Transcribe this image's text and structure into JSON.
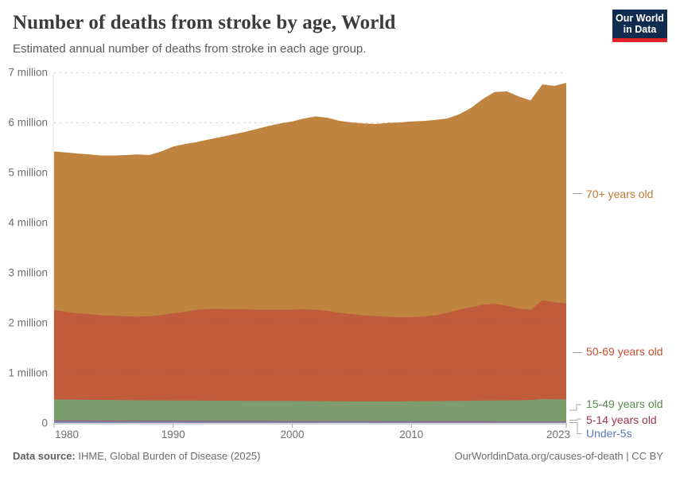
{
  "header": {
    "title": "Number of deaths from stroke by age, World",
    "subtitle": "Estimated annual number of deaths from stroke in each age group."
  },
  "logo": {
    "line1": "Our World",
    "line2": "in Data",
    "bg_color": "#102d50",
    "accent_color": "#e0232b"
  },
  "footer": {
    "source_label": "Data source:",
    "source_value": " IHME, Global Burden of Disease (2025)",
    "credit": "OurWorldinData.org/causes-of-death | CC BY"
  },
  "chart_data": {
    "type": "area",
    "stacked": true,
    "title": "Number of deaths from stroke by age, World",
    "unit": "deaths per year (millions)",
    "xlabel": "",
    "ylabel": "",
    "ylim": [
      0,
      7
    ],
    "grid": "horizontal dashed",
    "legend_position": "right",
    "x_years": [
      1980,
      1981,
      1982,
      1983,
      1984,
      1985,
      1986,
      1987,
      1988,
      1989,
      1990,
      1991,
      1992,
      1993,
      1994,
      1995,
      1996,
      1997,
      1998,
      1999,
      2000,
      2001,
      2002,
      2003,
      2004,
      2005,
      2006,
      2007,
      2008,
      2009,
      2010,
      2011,
      2012,
      2013,
      2014,
      2015,
      2016,
      2017,
      2018,
      2019,
      2020,
      2021,
      2022,
      2023
    ],
    "yticks": [
      {
        "value": 0,
        "label": "0"
      },
      {
        "value": 1,
        "label": "1 million"
      },
      {
        "value": 2,
        "label": "2 million"
      },
      {
        "value": 3,
        "label": "3 million"
      },
      {
        "value": 4,
        "label": "4 million"
      },
      {
        "value": 5,
        "label": "5 million"
      },
      {
        "value": 6,
        "label": "6 million"
      },
      {
        "value": 7,
        "label": "7 million"
      }
    ],
    "xticks": [
      {
        "year": 1980,
        "label": "1980"
      },
      {
        "year": 1990,
        "label": "1990"
      },
      {
        "year": 2000,
        "label": "2000"
      },
      {
        "year": 2010,
        "label": "2010"
      },
      {
        "year": 2023,
        "label": "2023"
      }
    ],
    "series": [
      {
        "id": "under-5s",
        "label": "Under-5s",
        "color": "#8089bd",
        "label_color": "#5879b9",
        "values": [
          0.034,
          0.034,
          0.033,
          0.033,
          0.032,
          0.032,
          0.031,
          0.031,
          0.03,
          0.03,
          0.03,
          0.029,
          0.029,
          0.028,
          0.028,
          0.028,
          0.027,
          0.027,
          0.027,
          0.026,
          0.026,
          0.026,
          0.026,
          0.025,
          0.025,
          0.025,
          0.025,
          0.024,
          0.024,
          0.024,
          0.024,
          0.024,
          0.023,
          0.023,
          0.023,
          0.023,
          0.023,
          0.022,
          0.022,
          0.022,
          0.022,
          0.022,
          0.022,
          0.022
        ]
      },
      {
        "id": "5-14",
        "label": "5-14 years old",
        "color": "#99506b",
        "label_color": "#a2344b",
        "values": [
          0.016,
          0.016,
          0.016,
          0.016,
          0.016,
          0.015,
          0.015,
          0.015,
          0.015,
          0.015,
          0.014,
          0.014,
          0.014,
          0.014,
          0.014,
          0.014,
          0.014,
          0.014,
          0.014,
          0.014,
          0.013,
          0.013,
          0.013,
          0.013,
          0.013,
          0.013,
          0.013,
          0.013,
          0.013,
          0.013,
          0.013,
          0.013,
          0.013,
          0.013,
          0.012,
          0.012,
          0.012,
          0.012,
          0.012,
          0.012,
          0.012,
          0.012,
          0.012,
          0.012
        ]
      },
      {
        "id": "15-49",
        "label": "15-49 years old",
        "color": "#7d9c6e",
        "label_color": "#578a4c",
        "values": [
          0.42,
          0.418,
          0.416,
          0.414,
          0.412,
          0.41,
          0.408,
          0.407,
          0.406,
          0.405,
          0.405,
          0.404,
          0.404,
          0.403,
          0.402,
          0.402,
          0.401,
          0.401,
          0.4,
          0.4,
          0.4,
          0.399,
          0.398,
          0.397,
          0.397,
          0.396,
          0.396,
          0.396,
          0.397,
          0.397,
          0.398,
          0.399,
          0.401,
          0.403,
          0.406,
          0.409,
          0.412,
          0.415,
          0.417,
          0.419,
          0.421,
          0.445,
          0.44,
          0.436
        ]
      },
      {
        "id": "50-69",
        "label": "50-69 years old",
        "color": "#c05b3b",
        "label_color": "#c4502e",
        "values": [
          1.78,
          1.752,
          1.725,
          1.707,
          1.69,
          1.683,
          1.676,
          1.671,
          1.679,
          1.706,
          1.741,
          1.773,
          1.813,
          1.833,
          1.836,
          1.826,
          1.828,
          1.818,
          1.82,
          1.82,
          1.821,
          1.832,
          1.823,
          1.798,
          1.765,
          1.736,
          1.716,
          1.697,
          1.686,
          1.676,
          1.676,
          1.686,
          1.713,
          1.761,
          1.819,
          1.865,
          1.913,
          1.93,
          1.891,
          1.827,
          1.803,
          1.968,
          1.936,
          1.912
        ]
      },
      {
        "id": "70-plus",
        "label": "70+ years old",
        "color": "#bf8540",
        "label_color": "#bd7935",
        "values": [
          3.17,
          3.18,
          3.19,
          3.19,
          3.19,
          3.2,
          3.22,
          3.236,
          3.22,
          3.264,
          3.33,
          3.35,
          3.35,
          3.382,
          3.43,
          3.49,
          3.54,
          3.61,
          3.669,
          3.72,
          3.76,
          3.81,
          3.86,
          3.857,
          3.83,
          3.83,
          3.83,
          3.84,
          3.87,
          3.89,
          3.909,
          3.908,
          3.9,
          3.88,
          3.9,
          3.981,
          4.11,
          4.231,
          4.278,
          4.239,
          4.182,
          4.313,
          4.32,
          4.408
        ]
      }
    ]
  }
}
